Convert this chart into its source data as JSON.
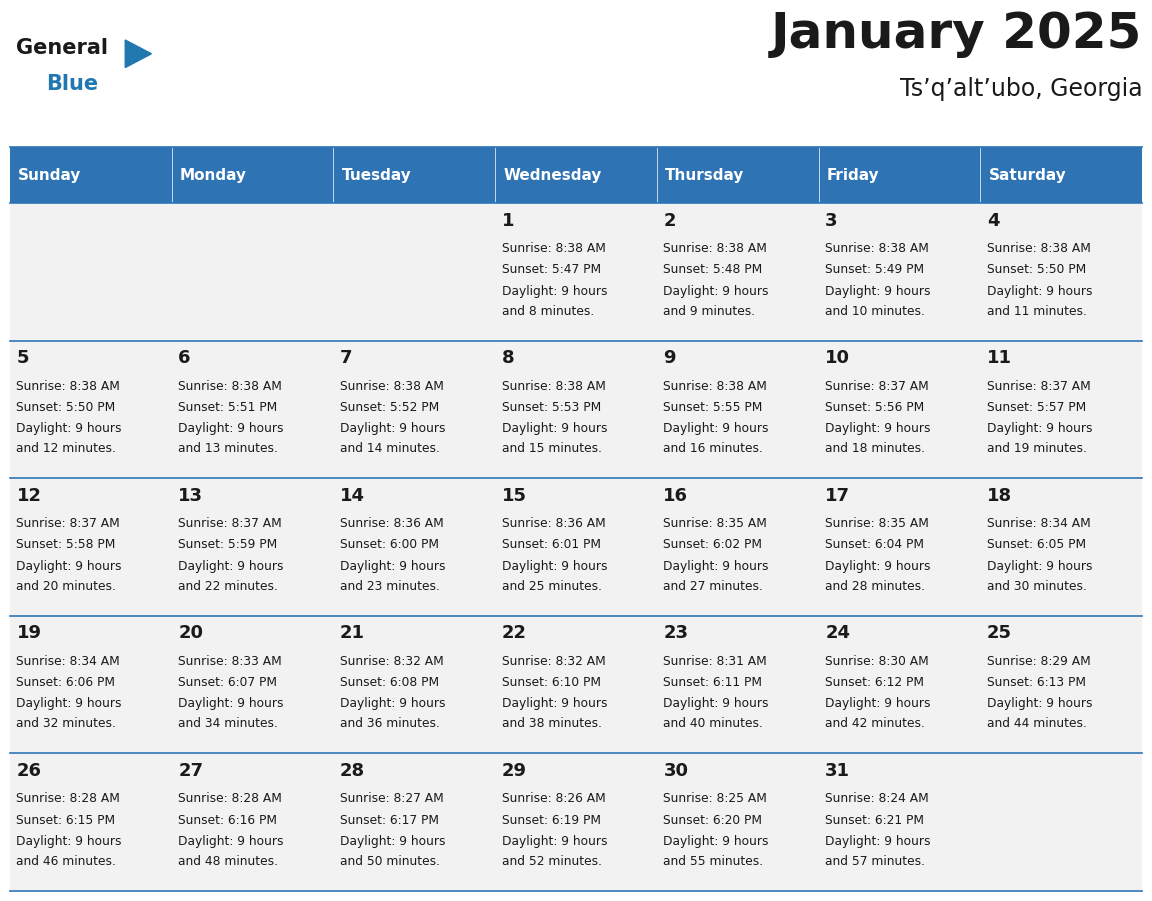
{
  "title": "January 2025",
  "subtitle": "Ts’q’alt’ubo, Georgia",
  "header_color": "#2E74B5",
  "header_text_color": "#FFFFFF",
  "cell_bg_color": "#F2F2F2",
  "border_color": "#2E74B5",
  "text_color": "#1a1a1a",
  "day_names": [
    "Sunday",
    "Monday",
    "Tuesday",
    "Wednesday",
    "Thursday",
    "Friday",
    "Saturday"
  ],
  "calendar_data": [
    [
      null,
      null,
      null,
      {
        "day": 1,
        "sunrise": "8:38 AM",
        "sunset": "5:47 PM",
        "daylight": "9 hours\nand 8 minutes."
      },
      {
        "day": 2,
        "sunrise": "8:38 AM",
        "sunset": "5:48 PM",
        "daylight": "9 hours\nand 9 minutes."
      },
      {
        "day": 3,
        "sunrise": "8:38 AM",
        "sunset": "5:49 PM",
        "daylight": "9 hours\nand 10 minutes."
      },
      {
        "day": 4,
        "sunrise": "8:38 AM",
        "sunset": "5:50 PM",
        "daylight": "9 hours\nand 11 minutes."
      }
    ],
    [
      {
        "day": 5,
        "sunrise": "8:38 AM",
        "sunset": "5:50 PM",
        "daylight": "9 hours\nand 12 minutes."
      },
      {
        "day": 6,
        "sunrise": "8:38 AM",
        "sunset": "5:51 PM",
        "daylight": "9 hours\nand 13 minutes."
      },
      {
        "day": 7,
        "sunrise": "8:38 AM",
        "sunset": "5:52 PM",
        "daylight": "9 hours\nand 14 minutes."
      },
      {
        "day": 8,
        "sunrise": "8:38 AM",
        "sunset": "5:53 PM",
        "daylight": "9 hours\nand 15 minutes."
      },
      {
        "day": 9,
        "sunrise": "8:38 AM",
        "sunset": "5:55 PM",
        "daylight": "9 hours\nand 16 minutes."
      },
      {
        "day": 10,
        "sunrise": "8:37 AM",
        "sunset": "5:56 PM",
        "daylight": "9 hours\nand 18 minutes."
      },
      {
        "day": 11,
        "sunrise": "8:37 AM",
        "sunset": "5:57 PM",
        "daylight": "9 hours\nand 19 minutes."
      }
    ],
    [
      {
        "day": 12,
        "sunrise": "8:37 AM",
        "sunset": "5:58 PM",
        "daylight": "9 hours\nand 20 minutes."
      },
      {
        "day": 13,
        "sunrise": "8:37 AM",
        "sunset": "5:59 PM",
        "daylight": "9 hours\nand 22 minutes."
      },
      {
        "day": 14,
        "sunrise": "8:36 AM",
        "sunset": "6:00 PM",
        "daylight": "9 hours\nand 23 minutes."
      },
      {
        "day": 15,
        "sunrise": "8:36 AM",
        "sunset": "6:01 PM",
        "daylight": "9 hours\nand 25 minutes."
      },
      {
        "day": 16,
        "sunrise": "8:35 AM",
        "sunset": "6:02 PM",
        "daylight": "9 hours\nand 27 minutes."
      },
      {
        "day": 17,
        "sunrise": "8:35 AM",
        "sunset": "6:04 PM",
        "daylight": "9 hours\nand 28 minutes."
      },
      {
        "day": 18,
        "sunrise": "8:34 AM",
        "sunset": "6:05 PM",
        "daylight": "9 hours\nand 30 minutes."
      }
    ],
    [
      {
        "day": 19,
        "sunrise": "8:34 AM",
        "sunset": "6:06 PM",
        "daylight": "9 hours\nand 32 minutes."
      },
      {
        "day": 20,
        "sunrise": "8:33 AM",
        "sunset": "6:07 PM",
        "daylight": "9 hours\nand 34 minutes."
      },
      {
        "day": 21,
        "sunrise": "8:32 AM",
        "sunset": "6:08 PM",
        "daylight": "9 hours\nand 36 minutes."
      },
      {
        "day": 22,
        "sunrise": "8:32 AM",
        "sunset": "6:10 PM",
        "daylight": "9 hours\nand 38 minutes."
      },
      {
        "day": 23,
        "sunrise": "8:31 AM",
        "sunset": "6:11 PM",
        "daylight": "9 hours\nand 40 minutes."
      },
      {
        "day": 24,
        "sunrise": "8:30 AM",
        "sunset": "6:12 PM",
        "daylight": "9 hours\nand 42 minutes."
      },
      {
        "day": 25,
        "sunrise": "8:29 AM",
        "sunset": "6:13 PM",
        "daylight": "9 hours\nand 44 minutes."
      }
    ],
    [
      {
        "day": 26,
        "sunrise": "8:28 AM",
        "sunset": "6:15 PM",
        "daylight": "9 hours\nand 46 minutes."
      },
      {
        "day": 27,
        "sunrise": "8:28 AM",
        "sunset": "6:16 PM",
        "daylight": "9 hours\nand 48 minutes."
      },
      {
        "day": 28,
        "sunrise": "8:27 AM",
        "sunset": "6:17 PM",
        "daylight": "9 hours\nand 50 minutes."
      },
      {
        "day": 29,
        "sunrise": "8:26 AM",
        "sunset": "6:19 PM",
        "daylight": "9 hours\nand 52 minutes."
      },
      {
        "day": 30,
        "sunrise": "8:25 AM",
        "sunset": "6:20 PM",
        "daylight": "9 hours\nand 55 minutes."
      },
      {
        "day": 31,
        "sunrise": "8:24 AM",
        "sunset": "6:21 PM",
        "daylight": "9 hours\nand 57 minutes."
      },
      null
    ]
  ],
  "logo_general_color": "#1a1a1a",
  "logo_blue_color": "#2177B0",
  "logo_triangle_color": "#2177B0",
  "title_fontsize": 36,
  "subtitle_fontsize": 17,
  "header_fontsize": 11,
  "day_num_fontsize": 13,
  "cell_text_fontsize": 8.8
}
